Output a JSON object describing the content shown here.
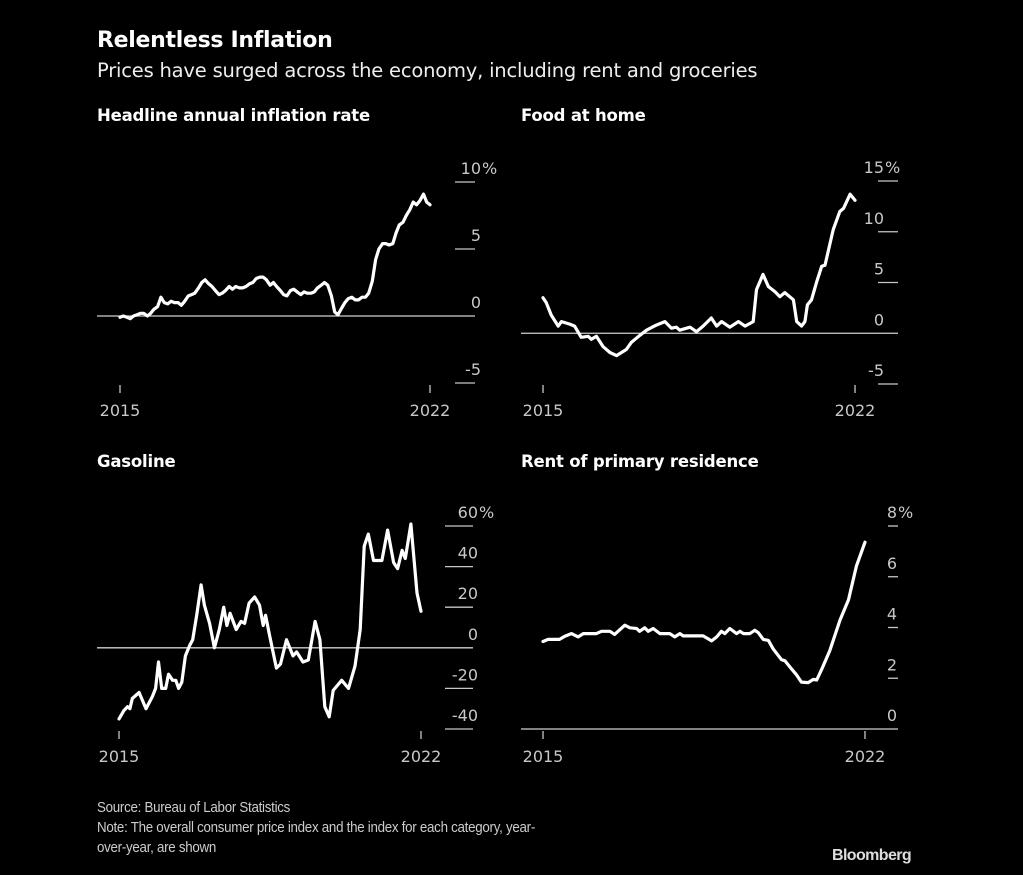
{
  "header": {
    "title": "Relentless Inflation",
    "subtitle": "Prices have surged across the economy, including rent and groceries"
  },
  "footer": {
    "source": "Source: Bureau of Labor Statistics",
    "note_line1": "Note: The overall consumer price index and the index for each category, year-",
    "note_line2": "over-year, are shown",
    "logo": "Bloomberg"
  },
  "colors": {
    "background": "#000000",
    "line": "#ffffff",
    "axis_text": "#c8c8c8"
  },
  "chart_data": [
    {
      "type": "line",
      "title": "Headline annual inflation rate",
      "unit": "%",
      "x_tick_labels": [
        "2015",
        "2022"
      ],
      "y_ticks": [
        10,
        5,
        0,
        -5
      ],
      "ylim": [
        -5,
        10
      ],
      "series": [
        {
          "x": [
            2015.0,
            2015.08,
            2015.17,
            2015.25,
            2015.33,
            2015.42,
            2015.5,
            2015.58,
            2015.67,
            2015.75,
            2015.83,
            2015.92,
            2016.0,
            2016.08,
            2016.17,
            2016.25,
            2016.33,
            2016.42,
            2016.5,
            2016.58,
            2016.67,
            2016.75,
            2016.83,
            2016.92,
            2017.0,
            2017.08,
            2017.17,
            2017.25,
            2017.33,
            2017.42,
            2017.5,
            2017.58,
            2017.67,
            2017.75,
            2017.83,
            2017.92,
            2018.0,
            2018.08,
            2018.17,
            2018.25,
            2018.33,
            2018.42,
            2018.5,
            2018.58,
            2018.67,
            2018.75,
            2018.83,
            2018.92,
            2019.0,
            2019.08,
            2019.17,
            2019.25,
            2019.33,
            2019.42,
            2019.5,
            2019.58,
            2019.67,
            2019.75,
            2019.83,
            2019.92,
            2020.0,
            2020.08,
            2020.17,
            2020.25,
            2020.33,
            2020.42,
            2020.5,
            2020.58,
            2020.67,
            2020.75,
            2020.83,
            2020.92,
            2021.0,
            2021.08,
            2021.17,
            2021.25,
            2021.33,
            2021.42,
            2021.5,
            2021.58,
            2021.67,
            2021.75,
            2021.83,
            2021.92,
            2022.0,
            2022.08,
            2022.17,
            2022.25,
            2022.33,
            2022.42,
            2022.5,
            2022.58
          ],
          "y": [
            -0.1,
            0,
            -0.1,
            -0.2,
            0,
            0.1,
            0.2,
            0.2,
            0,
            0.2,
            0.5,
            0.7,
            1.4,
            1.0,
            0.9,
            1.1,
            1.0,
            1.0,
            0.8,
            1.1,
            1.5,
            1.6,
            1.7,
            2.1,
            2.5,
            2.7,
            2.4,
            2.2,
            1.9,
            1.6,
            1.7,
            1.9,
            2.2,
            2.0,
            2.2,
            2.1,
            2.1,
            2.2,
            2.4,
            2.5,
            2.8,
            2.9,
            2.9,
            2.7,
            2.3,
            2.5,
            2.2,
            1.9,
            1.6,
            1.5,
            1.9,
            2.0,
            1.8,
            1.6,
            1.8,
            1.7,
            1.7,
            1.8,
            2.1,
            2.3,
            2.5,
            2.3,
            1.5,
            0.3,
            0.1,
            0.6,
            1.0,
            1.3,
            1.4,
            1.2,
            1.2,
            1.4,
            1.4,
            1.7,
            2.6,
            4.2,
            5.0,
            5.4,
            5.4,
            5.3,
            5.4,
            6.2,
            6.8,
            7.0,
            7.5,
            7.9,
            8.5,
            8.3,
            8.6,
            9.1,
            8.5,
            8.3
          ]
        }
      ]
    },
    {
      "type": "line",
      "title": "Food at home",
      "unit": "%",
      "x_tick_labels": [
        "2015",
        "2022"
      ],
      "y_ticks": [
        15,
        10,
        5,
        0,
        -5
      ],
      "ylim": [
        -5,
        15
      ],
      "series": [
        {
          "x": [
            2015.0,
            2015.08,
            2015.2,
            2015.37,
            2015.45,
            2015.65,
            2015.77,
            2015.93,
            2016.1,
            2016.18,
            2016.3,
            2016.46,
            2016.63,
            2016.79,
            2017.03,
            2017.15,
            2017.36,
            2017.52,
            2017.76,
            2017.97,
            2018.13,
            2018.25,
            2018.33,
            2018.58,
            2018.74,
            2018.9,
            2019.1,
            2019.23,
            2019.35,
            2019.55,
            2019.76,
            2019.92,
            2020.12,
            2020.2,
            2020.36,
            2020.49,
            2020.65,
            2020.77,
            2020.89,
            2021.1,
            2021.18,
            2021.3,
            2021.38,
            2021.44,
            2021.54,
            2021.67,
            2021.79,
            2021.87,
            2022.07,
            2022.23,
            2022.32,
            2022.48,
            2022.6
          ],
          "y": [
            3.5,
            3.0,
            1.8,
            0.7,
            1.15,
            0.9,
            0.7,
            -0.4,
            -0.3,
            -0.6,
            -0.3,
            -1.3,
            -1.9,
            -2.2,
            -1.6,
            -0.9,
            -0.2,
            0.3,
            0.8,
            1.15,
            0.5,
            0.6,
            0.3,
            0.6,
            0.15,
            0.7,
            1.5,
            0.7,
            1.15,
            0.6,
            1.15,
            0.7,
            1.15,
            4.3,
            5.8,
            4.6,
            4.1,
            3.6,
            4.0,
            3.3,
            1.15,
            0.7,
            1.15,
            2.8,
            3.3,
            5.1,
            6.6,
            6.7,
            10.2,
            12.0,
            12.3,
            13.7,
            13.1
          ]
        }
      ]
    },
    {
      "type": "line",
      "title": "Gasoline",
      "unit": "%",
      "x_tick_labels": [
        "2015",
        "2022"
      ],
      "y_ticks": [
        60,
        40,
        20,
        0,
        -20,
        -40
      ],
      "ylim": [
        -40,
        60
      ],
      "series": [
        {
          "x": [
            2015.0,
            2015.12,
            2015.21,
            2015.27,
            2015.33,
            2015.5,
            2015.67,
            2015.83,
            2015.91,
            2015.98,
            2016.06,
            2016.16,
            2016.23,
            2016.33,
            2016.41,
            2016.48,
            2016.56,
            2016.65,
            2016.75,
            2016.83,
            2016.93,
            2017.04,
            2017.12,
            2017.25,
            2017.37,
            2017.49,
            2017.6,
            2017.68,
            2017.76,
            2017.91,
            2018.03,
            2018.12,
            2018.23,
            2018.37,
            2018.49,
            2018.58,
            2018.64,
            2018.73,
            2018.91,
            2019.01,
            2019.16,
            2019.32,
            2019.41,
            2019.57,
            2019.7,
            2019.87,
            2019.99,
            2020.11,
            2020.22,
            2020.32,
            2020.53,
            2020.7,
            2020.86,
            2020.99,
            2021.09,
            2021.19,
            2021.32,
            2021.4,
            2021.53,
            2021.67,
            2021.82,
            2021.92,
            2022.03,
            2022.11,
            2022.25,
            2022.4,
            2022.5
          ],
          "y": [
            -35,
            -31,
            -29,
            -30,
            -25,
            -22,
            -30,
            -24,
            -20,
            -7,
            -20,
            -20,
            -13,
            -16,
            -16,
            -20,
            -17,
            -4,
            1,
            4,
            16,
            31,
            21,
            12,
            0,
            9,
            20,
            11,
            17,
            9,
            13,
            12,
            22,
            25,
            21,
            11,
            16,
            7,
            -10,
            -8,
            4,
            -4,
            -2,
            -7,
            -6,
            13,
            4,
            -29,
            -34,
            -21,
            -16,
            -20,
            -9,
            9,
            50,
            56,
            43,
            43,
            43,
            58,
            42,
            39,
            48,
            44,
            61,
            27,
            18
          ]
        }
      ]
    },
    {
      "type": "line",
      "title": "Rent of primary residence",
      "unit": "%",
      "x_tick_labels": [
        "2015",
        "2022"
      ],
      "y_ticks": [
        8,
        6,
        4,
        2,
        0
      ],
      "ylim": [
        0,
        8
      ],
      "series": [
        {
          "x": [
            2015.0,
            2015.12,
            2015.39,
            2015.51,
            2015.67,
            2015.83,
            2015.95,
            2016.26,
            2016.38,
            2016.58,
            2016.69,
            2016.93,
            2017.05,
            2017.21,
            2017.28,
            2017.4,
            2017.48,
            2017.6,
            2017.76,
            2017.99,
            2018.11,
            2018.23,
            2018.31,
            2018.78,
            2018.98,
            2019.1,
            2019.21,
            2019.29,
            2019.41,
            2019.57,
            2019.65,
            2019.73,
            2019.88,
            2020.0,
            2020.08,
            2020.2,
            2020.32,
            2020.43,
            2020.63,
            2020.71,
            2020.87,
            2020.99,
            2021.1,
            2021.26,
            2021.38,
            2021.46,
            2021.58,
            2021.77,
            2022.01,
            2022.21,
            2022.4,
            2022.6
          ],
          "y": [
            3.45,
            3.53,
            3.53,
            3.65,
            3.76,
            3.63,
            3.76,
            3.76,
            3.85,
            3.85,
            3.73,
            4.09,
            3.99,
            3.96,
            3.85,
            3.99,
            3.85,
            3.96,
            3.76,
            3.76,
            3.63,
            3.76,
            3.67,
            3.67,
            3.47,
            3.63,
            3.85,
            3.76,
            3.96,
            3.76,
            3.85,
            3.76,
            3.76,
            3.89,
            3.8,
            3.53,
            3.49,
            3.16,
            2.73,
            2.69,
            2.36,
            2.12,
            1.85,
            1.83,
            1.96,
            1.93,
            2.36,
            3.09,
            4.29,
            5.09,
            6.43,
            7.36
          ]
        }
      ]
    }
  ]
}
